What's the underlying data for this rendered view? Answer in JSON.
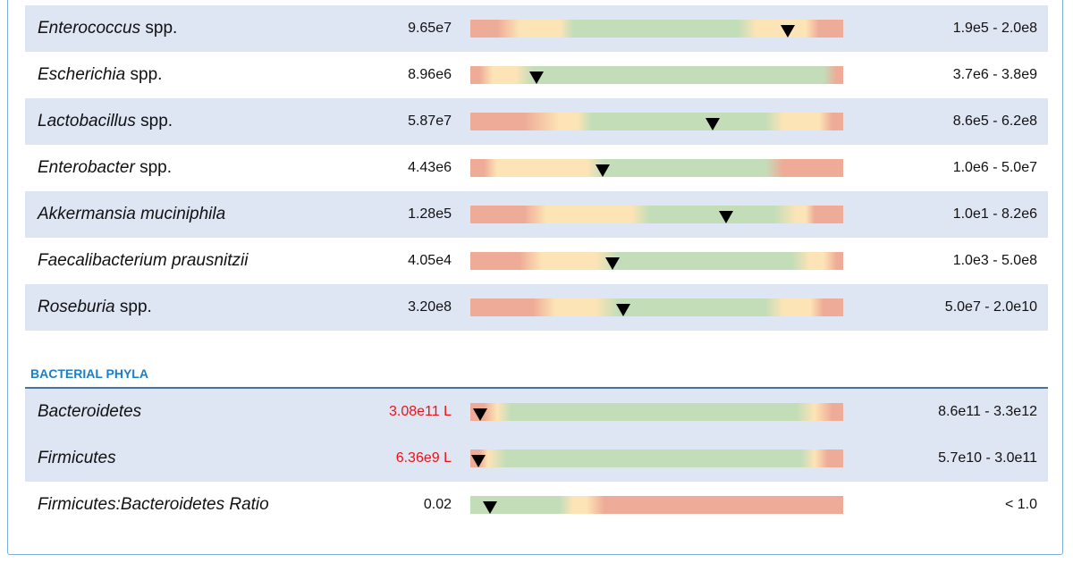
{
  "species": [
    {
      "name": "Enterococcus",
      "suffix": "spp.",
      "value": "9.65e7",
      "range": "1.9e5 - 2.0e8"
    },
    {
      "name": "Escherichia",
      "suffix": "spp.",
      "value": "8.96e6",
      "range": "3.7e6 - 3.8e9"
    },
    {
      "name": "Lactobacillus",
      "suffix": "spp.",
      "value": "5.87e7",
      "range": "8.6e5 - 6.2e8"
    },
    {
      "name": "Enterobacter",
      "suffix": "spp.",
      "value": "4.43e6",
      "range": "1.0e6 - 5.0e7"
    },
    {
      "name": "Akkermansia muciniphila",
      "value": "1.28e5",
      "range": "1.0e1 - 8.2e6"
    },
    {
      "name": "Faecalibacterium prausnitzii",
      "value": "4.05e4",
      "range": "1.0e3 - 5.0e8"
    },
    {
      "name": "Roseburia",
      "suffix": "spp.",
      "value": "3.20e8",
      "range": "5.0e7 - 2.0e10"
    }
  ],
  "phyla": {
    "heading": "BACTERIAL PHYLA",
    "rows": [
      {
        "name": "Bacteroidetes",
        "value": "3.08e11",
        "flag": "L",
        "range": "8.6e11 - 3.3e12"
      },
      {
        "name": "Firmicutes",
        "value": "6.36e9",
        "flag": "L",
        "range": "5.7e10 - 3.0e11"
      },
      {
        "name": "Firmicutes:Bacteroidetes Ratio",
        "value": "0.02",
        "range": "< 1.0"
      }
    ]
  }
}
